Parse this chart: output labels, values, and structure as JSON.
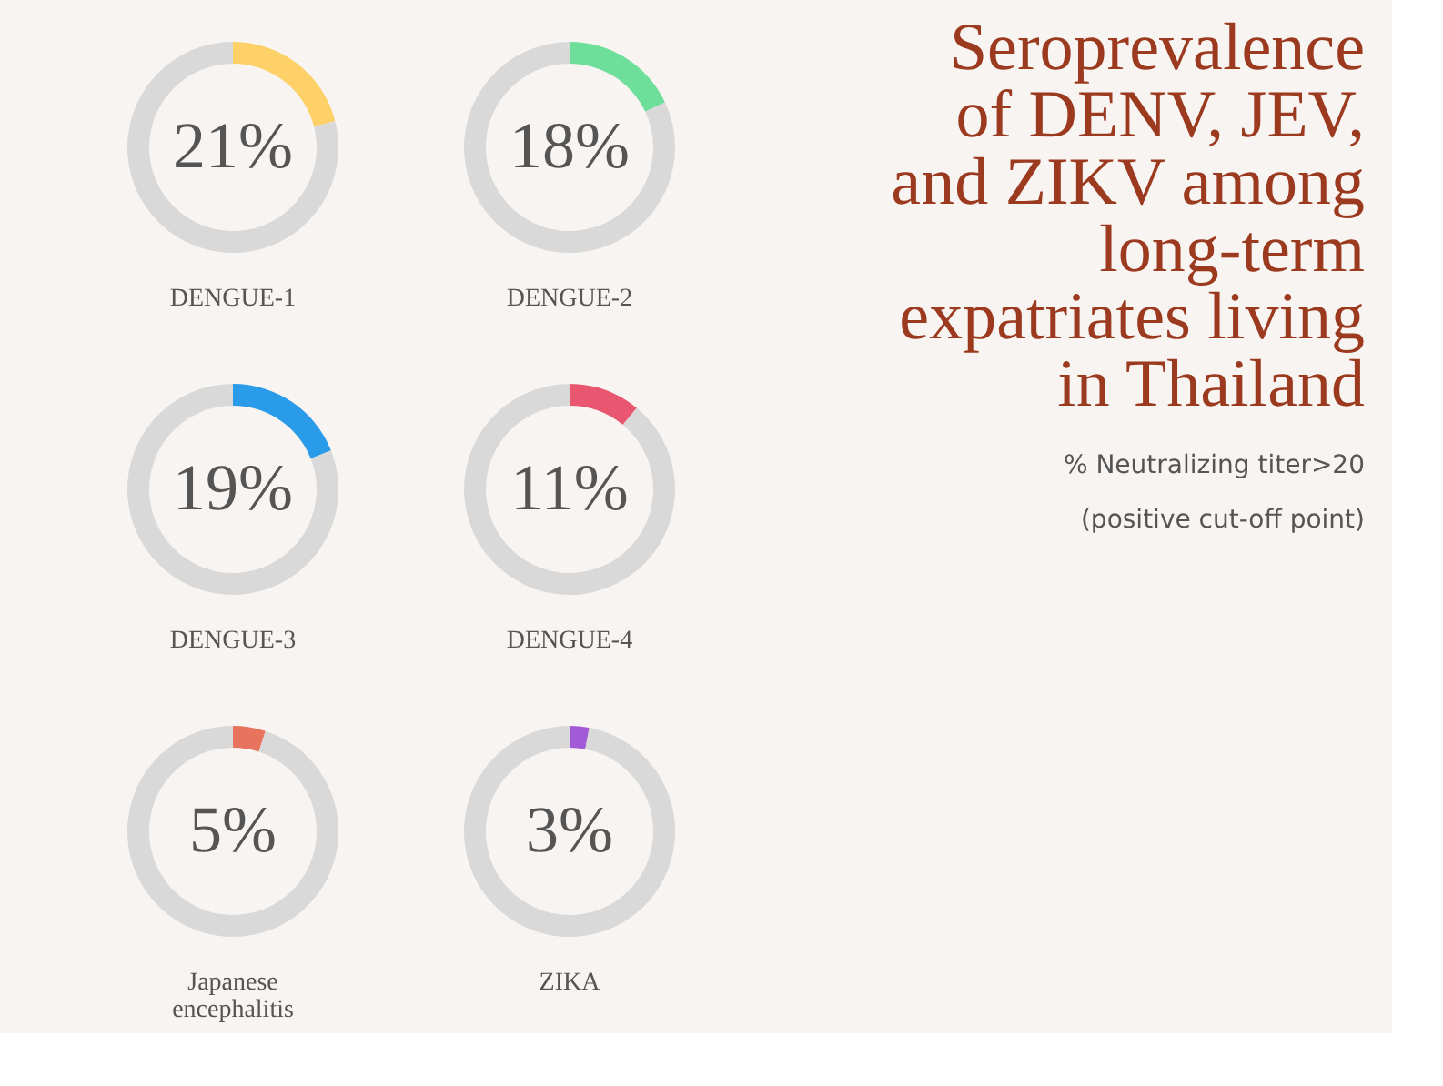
{
  "chart_data": [
    {
      "type": "donut",
      "xlabel": "DENGUE-1",
      "categories": [
        null,
        null
      ],
      "values": [
        21,
        79
      ],
      "colors": [
        "#fdd068",
        "#d9d9d9"
      ],
      "value_labels": [
        "21%",
        null
      ]
    },
    {
      "type": "donut",
      "xlabel": "DENGUE-2",
      "categories": [
        null,
        null
      ],
      "values": [
        18,
        82
      ],
      "colors": [
        "#6ddf9a",
        "#d9d9d9"
      ],
      "value_labels": [
        "18%",
        null
      ]
    },
    {
      "type": "donut",
      "xlabel": "DENGUE-3",
      "categories": [
        null,
        null
      ],
      "values": [
        19,
        81
      ],
      "colors": [
        "#2a9be8",
        "#d9d9d9"
      ],
      "value_labels": [
        "19%",
        null
      ]
    },
    {
      "type": "donut",
      "xlabel": "DENGUE-4",
      "categories": [
        null,
        null
      ],
      "values": [
        11,
        89
      ],
      "colors": [
        "#e85670",
        "#d9d9d9"
      ],
      "value_labels": [
        "11%",
        null
      ]
    },
    {
      "type": "donut",
      "xlabel": "Japanese\nencephalitis",
      "categories": [
        null,
        null
      ],
      "values": [
        5,
        95
      ],
      "colors": [
        "#e8735e",
        "#d9d9d9"
      ],
      "value_labels": [
        "5%",
        null
      ]
    },
    {
      "type": "donut",
      "xlabel": "ZIKA",
      "categories": [
        null,
        null
      ],
      "values": [
        3,
        97
      ],
      "colors": [
        "#a25ad6",
        "#d9d9d9"
      ],
      "value_labels": [
        "3%",
        null
      ]
    },
    {
      "type": "other",
      "title": "Seroprevalence\nof DENV, JEV,\nand ZIKV among\nlong-term\nexpatriates living\nin Thailand",
      "subtitle": "% Neutralizing titer>20\n(positive cut-off point)"
    }
  ]
}
